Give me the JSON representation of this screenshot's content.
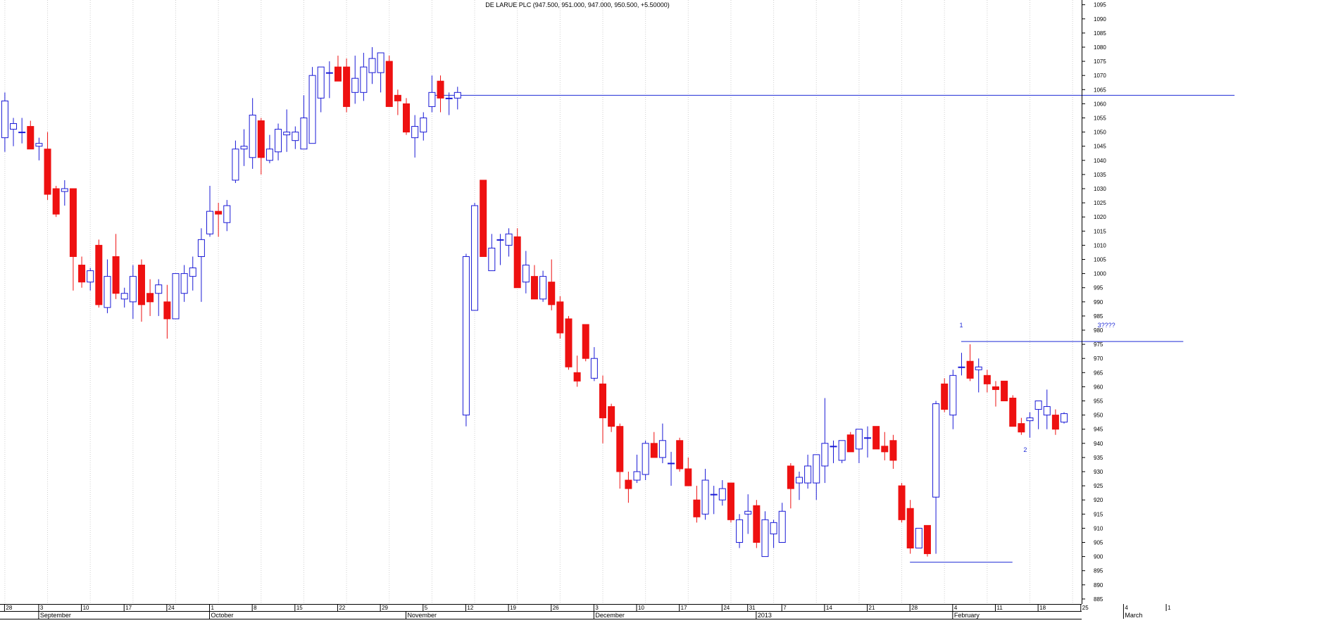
{
  "chart_data": {
    "type": "candlestick",
    "title": "DE LARUE PLC (947.500, 951.000, 947.000, 950.500, +5.50000)",
    "y_range": [
      880,
      1095
    ],
    "y_ticks": [
      885,
      890,
      895,
      900,
      905,
      910,
      915,
      920,
      925,
      930,
      935,
      940,
      945,
      950,
      955,
      960,
      965,
      970,
      975,
      980,
      985,
      990,
      995,
      1000,
      1005,
      1010,
      1015,
      1020,
      1025,
      1030,
      1035,
      1040,
      1045,
      1050,
      1055,
      1060,
      1065,
      1070,
      1075,
      1080,
      1085,
      1090,
      1095
    ],
    "y_tick_labels": [
      "885",
      "890",
      "895",
      "900",
      "905",
      "910",
      "915",
      "920",
      "925",
      "930",
      "935",
      "940",
      "945",
      "950",
      "955",
      "960",
      "965",
      "970",
      "975",
      "980",
      "985",
      "990",
      "995",
      "1000",
      "1005",
      "1010",
      "1015",
      "1020",
      "1025",
      "1030",
      "1035",
      "1040",
      "1045",
      "1050",
      "1055",
      "1060",
      "1065",
      "1070",
      "1075",
      "1080",
      "1085",
      "1090",
      "1095"
    ],
    "x_day_labels": [
      {
        "label": "28",
        "x": 0
      },
      {
        "label": "3",
        "x": 4
      },
      {
        "label": "10",
        "x": 9
      },
      {
        "label": "17",
        "x": 14
      },
      {
        "label": "24",
        "x": 19
      },
      {
        "label": "1",
        "x": 24
      },
      {
        "label": "8",
        "x": 29
      },
      {
        "label": "15",
        "x": 34
      },
      {
        "label": "22",
        "x": 39
      },
      {
        "label": "29",
        "x": 44
      },
      {
        "label": "5",
        "x": 49
      },
      {
        "label": "12",
        "x": 54
      },
      {
        "label": "19",
        "x": 59
      },
      {
        "label": "26",
        "x": 64
      },
      {
        "label": "3",
        "x": 69
      },
      {
        "label": "10",
        "x": 74
      },
      {
        "label": "17",
        "x": 79
      },
      {
        "label": "24",
        "x": 84
      },
      {
        "label": "31",
        "x": 87
      },
      {
        "label": "7",
        "x": 91
      },
      {
        "label": "14",
        "x": 96
      },
      {
        "label": "21",
        "x": 101
      },
      {
        "label": "28",
        "x": 106
      },
      {
        "label": "4",
        "x": 111
      },
      {
        "label": "11",
        "x": 116
      },
      {
        "label": "18",
        "x": 121
      },
      {
        "label": "25",
        "x": 126
      },
      {
        "label": "4",
        "x": 131
      },
      {
        "label": "1",
        "x": 136
      }
    ],
    "x_month_labels": [
      {
        "label": "September",
        "x": 4
      },
      {
        "label": "October",
        "x": 24
      },
      {
        "label": "November",
        "x": 47
      },
      {
        "label": "December",
        "x": 69
      },
      {
        "label": "2013",
        "x": 88
      },
      {
        "label": "February",
        "x": 111
      },
      {
        "label": "March",
        "x": 131
      }
    ],
    "candles": [
      {
        "x": 0,
        "o": 1048,
        "h": 1064,
        "l": 1043,
        "c": 1061
      },
      {
        "x": 1,
        "o": 1051,
        "h": 1055,
        "l": 1045,
        "c": 1053
      },
      {
        "x": 2,
        "o": 1050,
        "h": 1055,
        "l": 1046,
        "c": 1050
      },
      {
        "x": 3,
        "o": 1052,
        "h": 1054,
        "l": 1044,
        "c": 1044
      },
      {
        "x": 4,
        "o": 1045,
        "h": 1048,
        "l": 1040,
        "c": 1046
      },
      {
        "x": 5,
        "o": 1044,
        "h": 1050,
        "l": 1026,
        "c": 1028
      },
      {
        "x": 6,
        "o": 1030,
        "h": 1031,
        "l": 1020,
        "c": 1021
      },
      {
        "x": 7,
        "o": 1029,
        "h": 1033,
        "l": 1024,
        "c": 1030
      },
      {
        "x": 8,
        "o": 1030,
        "h": 1030,
        "l": 994,
        "c": 1006
      },
      {
        "x": 9,
        "o": 1003,
        "h": 1006,
        "l": 995,
        "c": 997
      },
      {
        "x": 10,
        "o": 997,
        "h": 1002,
        "l": 994,
        "c": 1001
      },
      {
        "x": 11,
        "o": 1010,
        "h": 1012,
        "l": 988,
        "c": 989
      },
      {
        "x": 12,
        "o": 988,
        "h": 1005,
        "l": 986,
        "c": 999
      },
      {
        "x": 13,
        "o": 1006,
        "h": 1014,
        "l": 991,
        "c": 993
      },
      {
        "x": 14,
        "o": 991,
        "h": 995,
        "l": 988,
        "c": 993
      },
      {
        "x": 15,
        "o": 990,
        "h": 1003,
        "l": 984,
        "c": 999
      },
      {
        "x": 16,
        "o": 1003,
        "h": 1005,
        "l": 983,
        "c": 989
      },
      {
        "x": 17,
        "o": 993,
        "h": 998,
        "l": 985,
        "c": 990
      },
      {
        "x": 18,
        "o": 993,
        "h": 998,
        "l": 985,
        "c": 996
      },
      {
        "x": 19,
        "o": 990,
        "h": 996,
        "l": 977,
        "c": 984
      },
      {
        "x": 20,
        "o": 984,
        "h": 1000,
        "l": 984,
        "c": 1000
      },
      {
        "x": 21,
        "o": 993,
        "h": 1003,
        "l": 990,
        "c": 1000
      },
      {
        "x": 22,
        "o": 999,
        "h": 1006,
        "l": 994,
        "c": 1002
      },
      {
        "x": 23,
        "o": 1006,
        "h": 1016,
        "l": 990,
        "c": 1012
      },
      {
        "x": 24,
        "o": 1014,
        "h": 1031,
        "l": 1013,
        "c": 1022
      },
      {
        "x": 25,
        "o": 1022,
        "h": 1025,
        "l": 1013,
        "c": 1021
      },
      {
        "x": 26,
        "o": 1018,
        "h": 1026,
        "l": 1015,
        "c": 1024
      },
      {
        "x": 27,
        "o": 1033,
        "h": 1047,
        "l": 1032,
        "c": 1044
      },
      {
        "x": 28,
        "o": 1044,
        "h": 1051,
        "l": 1038,
        "c": 1045
      },
      {
        "x": 29,
        "o": 1041,
        "h": 1062,
        "l": 1037,
        "c": 1056
      },
      {
        "x": 30,
        "o": 1054,
        "h": 1055,
        "l": 1035,
        "c": 1041
      },
      {
        "x": 31,
        "o": 1040,
        "h": 1049,
        "l": 1039,
        "c": 1044
      },
      {
        "x": 32,
        "o": 1043,
        "h": 1053,
        "l": 1040,
        "c": 1051
      },
      {
        "x": 33,
        "o": 1049,
        "h": 1058,
        "l": 1043,
        "c": 1050
      },
      {
        "x": 34,
        "o": 1047,
        "h": 1052,
        "l": 1044,
        "c": 1050
      },
      {
        "x": 35,
        "o": 1044,
        "h": 1063,
        "l": 1044,
        "c": 1055
      },
      {
        "x": 36,
        "o": 1046,
        "h": 1073,
        "l": 1046,
        "c": 1070
      },
      {
        "x": 37,
        "o": 1062,
        "h": 1073,
        "l": 1057,
        "c": 1073
      },
      {
        "x": 38,
        "o": 1071,
        "h": 1075,
        "l": 1062,
        "c": 1071
      },
      {
        "x": 39,
        "o": 1073,
        "h": 1077,
        "l": 1068,
        "c": 1068
      },
      {
        "x": 40,
        "o": 1073,
        "h": 1076,
        "l": 1057,
        "c": 1059
      },
      {
        "x": 41,
        "o": 1064,
        "h": 1077,
        "l": 1060,
        "c": 1069
      },
      {
        "x": 42,
        "o": 1064,
        "h": 1078,
        "l": 1061,
        "c": 1073
      },
      {
        "x": 43,
        "o": 1071,
        "h": 1080,
        "l": 1067,
        "c": 1076
      },
      {
        "x": 44,
        "o": 1071,
        "h": 1078,
        "l": 1064,
        "c": 1078
      },
      {
        "x": 45,
        "o": 1075,
        "h": 1077,
        "l": 1059,
        "c": 1059
      },
      {
        "x": 46,
        "o": 1063,
        "h": 1065,
        "l": 1056,
        "c": 1061
      },
      {
        "x": 47,
        "o": 1060,
        "h": 1062,
        "l": 1049,
        "c": 1050
      },
      {
        "x": 48,
        "o": 1048,
        "h": 1056,
        "l": 1041,
        "c": 1052
      },
      {
        "x": 49,
        "o": 1050,
        "h": 1057,
        "l": 1047,
        "c": 1055
      },
      {
        "x": 50,
        "o": 1059,
        "h": 1070,
        "l": 1057,
        "c": 1064
      },
      {
        "x": 51,
        "o": 1068,
        "h": 1070,
        "l": 1057,
        "c": 1062
      },
      {
        "x": 52,
        "o": 1062,
        "h": 1064,
        "l": 1056,
        "c": 1062
      },
      {
        "x": 53,
        "o": 1062,
        "h": 1066,
        "l": 1058,
        "c": 1064
      },
      {
        "x": 54,
        "o": 950,
        "h": 1007,
        "l": 946,
        "c": 1006
      },
      {
        "x": 55,
        "o": 987,
        "h": 1025,
        "l": 987,
        "c": 1024
      },
      {
        "x": 56,
        "o": 1033,
        "h": 1033,
        "l": 1006,
        "c": 1006
      },
      {
        "x": 57,
        "o": 1001,
        "h": 1014,
        "l": 1001,
        "c": 1009
      },
      {
        "x": 58,
        "o": 1012,
        "h": 1014,
        "l": 1003,
        "c": 1012
      },
      {
        "x": 59,
        "o": 1010,
        "h": 1016,
        "l": 1006,
        "c": 1014
      },
      {
        "x": 60,
        "o": 1013,
        "h": 1016,
        "l": 995,
        "c": 995
      },
      {
        "x": 61,
        "o": 997,
        "h": 1008,
        "l": 993,
        "c": 1003
      },
      {
        "x": 62,
        "o": 999,
        "h": 1003,
        "l": 991,
        "c": 991
      },
      {
        "x": 63,
        "o": 991,
        "h": 1001,
        "l": 990,
        "c": 999
      },
      {
        "x": 64,
        "o": 997,
        "h": 1005,
        "l": 987,
        "c": 989
      },
      {
        "x": 65,
        "o": 990,
        "h": 992,
        "l": 977,
        "c": 979
      },
      {
        "x": 66,
        "o": 984,
        "h": 985,
        "l": 966,
        "c": 967
      },
      {
        "x": 67,
        "o": 965,
        "h": 971,
        "l": 960,
        "c": 962
      },
      {
        "x": 68,
        "o": 982,
        "h": 982,
        "l": 969,
        "c": 970
      },
      {
        "x": 69,
        "o": 963,
        "h": 974,
        "l": 962,
        "c": 970
      },
      {
        "x": 70,
        "o": 961,
        "h": 964,
        "l": 940,
        "c": 949
      },
      {
        "x": 71,
        "o": 953,
        "h": 954,
        "l": 944,
        "c": 946
      },
      {
        "x": 72,
        "o": 946,
        "h": 947,
        "l": 924,
        "c": 930
      },
      {
        "x": 73,
        "o": 927,
        "h": 930,
        "l": 919,
        "c": 924
      },
      {
        "x": 74,
        "o": 927,
        "h": 936,
        "l": 926,
        "c": 930
      },
      {
        "x": 75,
        "o": 929,
        "h": 941,
        "l": 927,
        "c": 940
      },
      {
        "x": 76,
        "o": 940,
        "h": 944,
        "l": 935,
        "c": 935
      },
      {
        "x": 77,
        "o": 935,
        "h": 947,
        "l": 933,
        "c": 941
      },
      {
        "x": 78,
        "o": 933,
        "h": 937,
        "l": 925,
        "c": 933
      },
      {
        "x": 79,
        "o": 941,
        "h": 942,
        "l": 930,
        "c": 931
      },
      {
        "x": 80,
        "o": 931,
        "h": 935,
        "l": 925,
        "c": 925
      },
      {
        "x": 81,
        "o": 920,
        "h": 925,
        "l": 912,
        "c": 914
      },
      {
        "x": 82,
        "o": 915,
        "h": 931,
        "l": 913,
        "c": 927
      },
      {
        "x": 83,
        "o": 922,
        "h": 925,
        "l": 915,
        "c": 922
      },
      {
        "x": 84,
        "o": 920,
        "h": 927,
        "l": 918,
        "c": 924
      },
      {
        "x": 85,
        "o": 926,
        "h": 926,
        "l": 912,
        "c": 913
      },
      {
        "x": 86,
        "o": 905,
        "h": 915,
        "l": 903,
        "c": 913
      },
      {
        "x": 87,
        "o": 915,
        "h": 922,
        "l": 908,
        "c": 916
      },
      {
        "x": 88,
        "o": 918,
        "h": 920,
        "l": 903,
        "c": 905
      },
      {
        "x": 89,
        "o": 900,
        "h": 916,
        "l": 900,
        "c": 913
      },
      {
        "x": 90,
        "o": 908,
        "h": 913,
        "l": 903,
        "c": 912
      },
      {
        "x": 91,
        "o": 905,
        "h": 919,
        "l": 905,
        "c": 916
      },
      {
        "x": 92,
        "o": 932,
        "h": 933,
        "l": 917,
        "c": 924
      },
      {
        "x": 93,
        "o": 926,
        "h": 930,
        "l": 920,
        "c": 928
      },
      {
        "x": 94,
        "o": 926,
        "h": 936,
        "l": 924,
        "c": 932
      },
      {
        "x": 95,
        "o": 926,
        "h": 936,
        "l": 920,
        "c": 936
      },
      {
        "x": 96,
        "o": 932,
        "h": 956,
        "l": 926,
        "c": 940
      },
      {
        "x": 97,
        "o": 939,
        "h": 941,
        "l": 933,
        "c": 939
      },
      {
        "x": 98,
        "o": 934,
        "h": 939,
        "l": 933,
        "c": 941
      },
      {
        "x": 99,
        "o": 943,
        "h": 944,
        "l": 938,
        "c": 937
      },
      {
        "x": 100,
        "o": 938,
        "h": 945,
        "l": 933,
        "c": 945
      },
      {
        "x": 101,
        "o": 942,
        "h": 946,
        "l": 935,
        "c": 942
      },
      {
        "x": 102,
        "o": 946,
        "h": 946,
        "l": 938,
        "c": 938
      },
      {
        "x": 103,
        "o": 939,
        "h": 944,
        "l": 934,
        "c": 937
      },
      {
        "x": 104,
        "o": 941,
        "h": 943,
        "l": 931,
        "c": 934
      },
      {
        "x": 105,
        "o": 925,
        "h": 926,
        "l": 912,
        "c": 913
      },
      {
        "x": 106,
        "o": 917,
        "h": 920,
        "l": 901,
        "c": 903
      },
      {
        "x": 107,
        "o": 903,
        "h": 910,
        "l": 903,
        "c": 910
      },
      {
        "x": 108,
        "o": 911,
        "h": 911,
        "l": 900,
        "c": 901
      },
      {
        "x": 109,
        "o": 921,
        "h": 955,
        "l": 901,
        "c": 954
      },
      {
        "x": 110,
        "o": 961,
        "h": 963,
        "l": 951,
        "c": 952
      },
      {
        "x": 111,
        "o": 950,
        "h": 966,
        "l": 945,
        "c": 964
      },
      {
        "x": 112,
        "o": 967,
        "h": 972,
        "l": 964,
        "c": 967
      },
      {
        "x": 113,
        "o": 969,
        "h": 975,
        "l": 962,
        "c": 963
      },
      {
        "x": 114,
        "o": 966,
        "h": 970,
        "l": 958,
        "c": 967
      },
      {
        "x": 115,
        "o": 964,
        "h": 966,
        "l": 958,
        "c": 961
      },
      {
        "x": 116,
        "o": 960,
        "h": 962,
        "l": 953,
        "c": 959
      },
      {
        "x": 117,
        "o": 962,
        "h": 962,
        "l": 955,
        "c": 955
      },
      {
        "x": 118,
        "o": 956,
        "h": 957,
        "l": 946,
        "c": 946
      },
      {
        "x": 119,
        "o": 947,
        "h": 949,
        "l": 943,
        "c": 944
      },
      {
        "x": 120,
        "o": 948,
        "h": 951,
        "l": 942,
        "c": 949
      },
      {
        "x": 121,
        "o": 952,
        "h": 955,
        "l": 945,
        "c": 955
      },
      {
        "x": 122,
        "o": 950,
        "h": 959,
        "l": 945,
        "c": 953
      },
      {
        "x": 123,
        "o": 950,
        "h": 952,
        "l": 943,
        "c": 945
      },
      {
        "x": 124,
        "o": 947.5,
        "h": 951,
        "l": 947,
        "c": 950.5
      }
    ],
    "lines": [
      {
        "from": [
          50,
          1063
        ],
        "to": [
          144,
          1063
        ]
      },
      {
        "from": [
          106,
          898
        ],
        "to": [
          118,
          898
        ]
      },
      {
        "from": [
          112,
          976
        ],
        "to": [
          138,
          976
        ]
      }
    ],
    "annotations": [
      {
        "text": "1",
        "x": 112,
        "y": 981
      },
      {
        "text": "3????",
        "x": 129,
        "y": 981
      },
      {
        "text": "2",
        "x": 119.5,
        "y": 937
      }
    ],
    "grid": "vertical dotted lines every 5 bars",
    "colors": {
      "up": "#1a1ad6",
      "down": "#ee1111",
      "line": "#1f2bd6",
      "grid": "#cfcfcf",
      "axis": "#000000"
    }
  }
}
